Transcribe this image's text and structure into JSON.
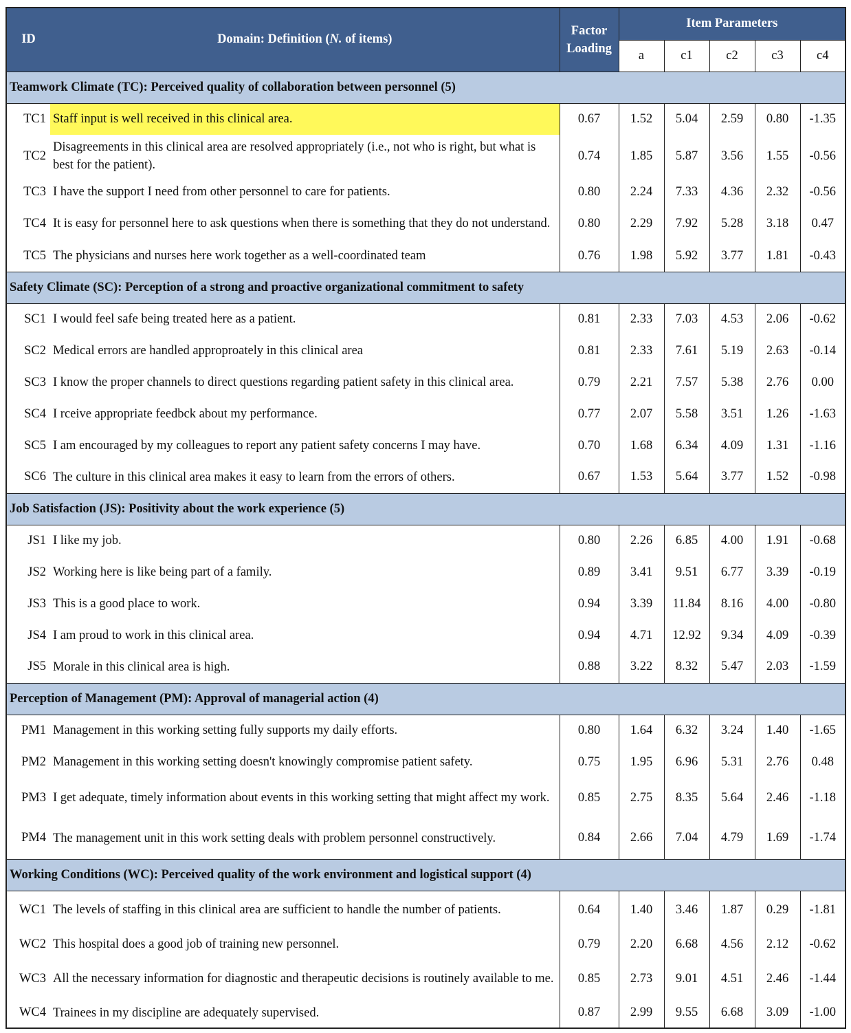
{
  "header": {
    "id": "ID",
    "domain": "Domain:  Definition (",
    "domain_n": "N.",
    "domain_end": " of items)",
    "factor_loading": "Factor Loading",
    "item_parameters": "Item Parameters",
    "params": [
      "a",
      "c1",
      "c2",
      "c3",
      "c4"
    ]
  },
  "highlight_color": "#fff95a",
  "sections": [
    {
      "title": "Teamwork Climate (TC): Perceived quality of collaboration between personnel (5)",
      "items": [
        {
          "id": "TC1",
          "text": "Staff input is well received in this clinical area.",
          "highlighted": true,
          "values": [
            "0.67",
            "1.52",
            "5.04",
            "2.59",
            "0.80",
            "-1.35"
          ]
        },
        {
          "id": "TC2",
          "text": "Disagreements in this clinical area are resolved appropriately (i.e., not who is right, but what is best for the patient).",
          "values": [
            "0.74",
            "1.85",
            "5.87",
            "3.56",
            "1.55",
            "-0.56"
          ]
        },
        {
          "id": "TC3",
          "text": "I have the support I need from other personnel to care for patients.",
          "values": [
            "0.80",
            "2.24",
            "7.33",
            "4.36",
            "2.32",
            "-0.56"
          ]
        },
        {
          "id": "TC4",
          "text": "It is easy for personnel here to ask questions when there is something that they do not understand.",
          "values": [
            "0.80",
            "2.29",
            "7.92",
            "5.28",
            "3.18",
            "0.47"
          ]
        },
        {
          "id": "TC5",
          "text": "The physicians and nurses here work together as a well-coordinated team",
          "values": [
            "0.76",
            "1.98",
            "5.92",
            "3.77",
            "1.81",
            "-0.43"
          ]
        }
      ]
    },
    {
      "title": "Safety Climate (SC): Perception of a strong and proactive organizational commitment to safety",
      "items": [
        {
          "id": "SC1",
          "text": "I would feel safe being treated here as a patient.",
          "values": [
            "0.81",
            "2.33",
            "7.03",
            "4.53",
            "2.06",
            "-0.62"
          ]
        },
        {
          "id": "SC2",
          "text": "Medical errors are handled approproately in this clinical area",
          "values": [
            "0.81",
            "2.33",
            "7.61",
            "5.19",
            "2.63",
            "-0.14"
          ]
        },
        {
          "id": "SC3",
          "text": "I know the proper channels to direct questions regarding patient safety in this clinical area.",
          "values": [
            "0.79",
            "2.21",
            "7.57",
            "5.38",
            "2.76",
            "0.00"
          ]
        },
        {
          "id": "SC4",
          "text": "I rceive appropriate feedbck about my performance.",
          "values": [
            "0.77",
            "2.07",
            "5.58",
            "3.51",
            "1.26",
            "-1.63"
          ]
        },
        {
          "id": "SC5",
          "text": "I am encouraged by my colleagues to report any patient safety concerns I may have.",
          "values": [
            "0.70",
            "1.68",
            "6.34",
            "4.09",
            "1.31",
            "-1.16"
          ]
        },
        {
          "id": "SC6",
          "text": "The culture in this clinical area makes it easy to learn from the errors of others.",
          "values": [
            "0.67",
            "1.53",
            "5.64",
            "3.77",
            "1.52",
            "-0.98"
          ]
        }
      ]
    },
    {
      "title": "Job Satisfaction (JS): Positivity about the work experience (5)",
      "items": [
        {
          "id": "JS1",
          "text": "I like my job.",
          "values": [
            "0.80",
            "2.26",
            "6.85",
            "4.00",
            "1.91",
            "-0.68"
          ]
        },
        {
          "id": "JS2",
          "text": "Working here is like being part of a family.",
          "values": [
            "0.89",
            "3.41",
            "9.51",
            "6.77",
            "3.39",
            "-0.19"
          ]
        },
        {
          "id": "JS3",
          "text": "This is a good place to work.",
          "values": [
            "0.94",
            "3.39",
            "11.84",
            "8.16",
            "4.00",
            "-0.80"
          ]
        },
        {
          "id": "JS4",
          "text": "I am proud to work in this clinical area.",
          "values": [
            "0.94",
            "4.71",
            "12.92",
            "9.34",
            "4.09",
            "-0.39"
          ]
        },
        {
          "id": "JS5",
          "text": "Morale in this clinical area is high.",
          "values": [
            "0.88",
            "3.22",
            "8.32",
            "5.47",
            "2.03",
            "-1.59"
          ]
        }
      ]
    },
    {
      "title": "Perception of Management (PM): Approval of managerial action (4)",
      "items": [
        {
          "id": "PM1",
          "text": "Management in this working setting fully supports my daily efforts.",
          "values": [
            "0.80",
            "1.64",
            "6.32",
            "3.24",
            "1.40",
            "-1.65"
          ]
        },
        {
          "id": "PM2",
          "text": "Management in this working setting doesn't knowingly compromise patient safety.",
          "values": [
            "0.75",
            "1.95",
            "6.96",
            "5.31",
            "2.76",
            "0.48"
          ]
        },
        {
          "id": "PM3",
          "text": "I get adequate, timely information about events in this working setting that might affect my work.",
          "values": [
            "0.85",
            "2.75",
            "8.35",
            "5.64",
            "2.46",
            "-1.18"
          ]
        },
        {
          "id": "PM4",
          "text": "The management unit in this work setting deals with problem personnel constructively.",
          "values": [
            "0.84",
            "2.66",
            "7.04",
            "4.79",
            "1.69",
            "-1.74"
          ]
        }
      ]
    },
    {
      "title": "Working Conditions (WC): Perceived quality of the work environment and logistical support (4)",
      "items": [
        {
          "id": "WC1",
          "text": "The levels of staffing in this clinical area are sufficient to handle the number of patients.",
          "values": [
            "0.64",
            "1.40",
            "3.46",
            "1.87",
            "0.29",
            "-1.81"
          ]
        },
        {
          "id": "WC2",
          "text": "This hospital does a good job of training new personnel.",
          "values": [
            "0.79",
            "2.20",
            "6.68",
            "4.56",
            "2.12",
            "-0.62"
          ]
        },
        {
          "id": "WC3",
          "text": "All the necessary information for diagnostic and therapeutic decisions is routinely available to me.",
          "values": [
            "0.85",
            "2.73",
            "9.01",
            "4.51",
            "2.46",
            "-1.44"
          ]
        },
        {
          "id": "WC4",
          "text": "Trainees in my discipline are adequately supervised.",
          "values": [
            "0.87",
            "2.99",
            "9.55",
            "6.68",
            "3.09",
            "-1.00"
          ]
        }
      ]
    }
  ]
}
